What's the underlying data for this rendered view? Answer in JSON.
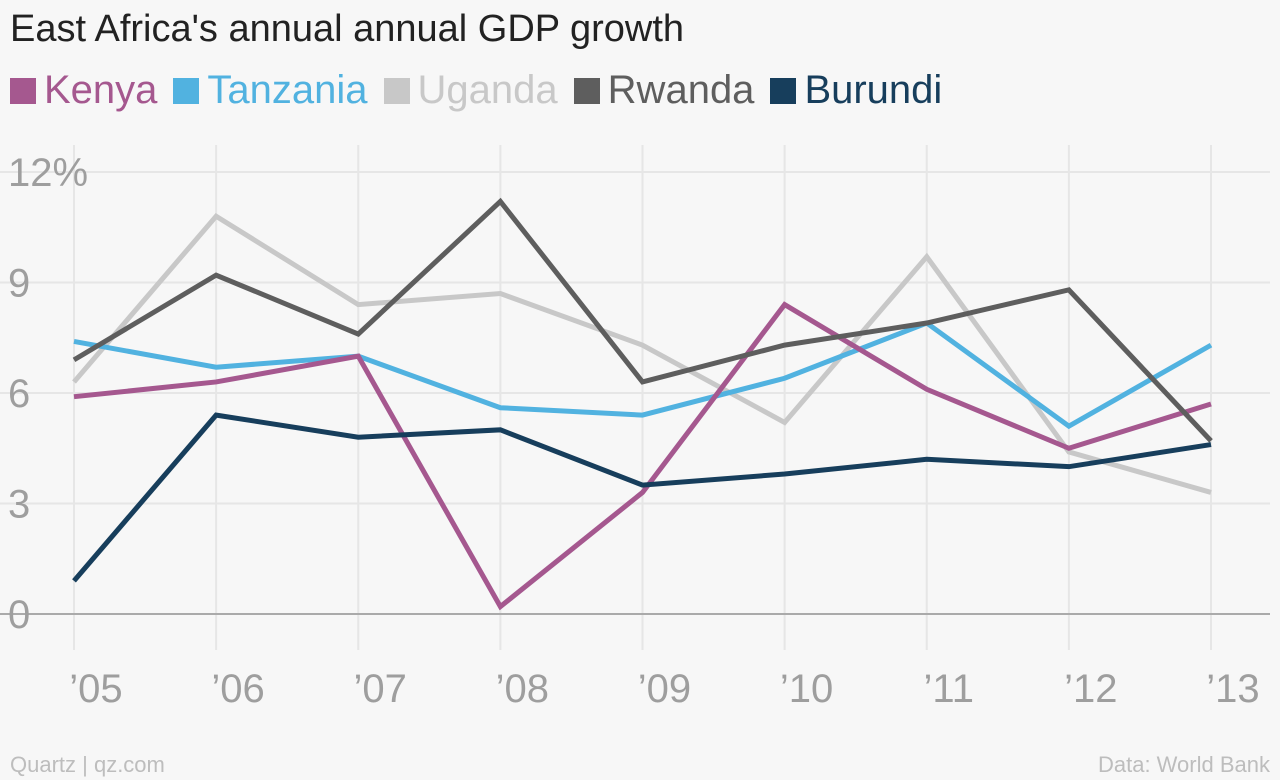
{
  "title": "East Africa's annual annual GDP growth",
  "footer": {
    "left": "Quartz | qz.com",
    "right": "Data: World Bank"
  },
  "colors": {
    "grid": "#e6e6e6",
    "baseline": "#aaaaaa",
    "tick": "#9e9e9e"
  },
  "chart_data": {
    "type": "line",
    "title": "East Africa's annual annual GDP growth",
    "x": [
      "’05",
      "’06",
      "’07",
      "’08",
      "’09",
      "’10",
      "’11",
      "’12",
      "’13"
    ],
    "ylim": [
      0,
      12
    ],
    "yticks": [
      0,
      3,
      6,
      9,
      12
    ],
    "ytick_labels": [
      "0",
      "3",
      "6",
      "9",
      "12%"
    ],
    "grid": true,
    "legend_position": "top-left",
    "series": [
      {
        "name": "Kenya",
        "color": "#a5588f",
        "values": [
          5.9,
          6.3,
          7.0,
          0.2,
          3.3,
          8.4,
          6.1,
          4.5,
          5.7
        ]
      },
      {
        "name": "Tanzania",
        "color": "#51b2e0",
        "values": [
          7.4,
          6.7,
          7.0,
          5.6,
          5.4,
          6.4,
          7.9,
          5.1,
          7.3
        ]
      },
      {
        "name": "Uganda",
        "color": "#c8c8c8",
        "values": [
          6.3,
          10.8,
          8.4,
          8.7,
          7.3,
          5.2,
          9.7,
          4.4,
          3.3
        ]
      },
      {
        "name": "Rwanda",
        "color": "#5e5e5e",
        "values": [
          6.9,
          9.2,
          7.6,
          11.2,
          6.3,
          7.3,
          7.9,
          8.8,
          4.7
        ]
      },
      {
        "name": "Burundi",
        "color": "#173e5c",
        "values": [
          0.9,
          5.4,
          4.8,
          5.0,
          3.5,
          3.8,
          4.2,
          4.0,
          4.6
        ]
      }
    ]
  }
}
